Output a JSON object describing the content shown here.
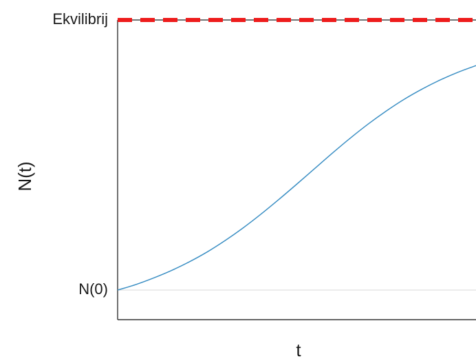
{
  "chart_data": {
    "type": "line",
    "title": "",
    "xlabel": "t",
    "ylabel": "N(t)",
    "y_ticks": [
      {
        "label": "N(0)",
        "value": 0.1
      },
      {
        "label": "Ekvilibrij",
        "value": 1.0
      }
    ],
    "xlim": [
      0,
      10
    ],
    "ylim": [
      0,
      1.0
    ],
    "grid": false,
    "legend": "none",
    "series": [
      {
        "color": "#3b8fc4",
        "x": [
          0,
          0.5,
          1,
          1.5,
          2,
          2.5,
          3,
          3.5,
          4,
          4.5,
          5,
          5.5,
          6,
          6.5,
          7,
          7.5,
          8,
          8.5,
          9,
          9.5,
          10
        ],
        "y": [
          0.1,
          0.118,
          0.14,
          0.165,
          0.194,
          0.227,
          0.265,
          0.307,
          0.353,
          0.402,
          0.453,
          0.505,
          0.557,
          0.607,
          0.654,
          0.697,
          0.736,
          0.77,
          0.8,
          0.826,
          0.848
        ]
      }
    ],
    "reference_lines": [
      {
        "name": "equilibrium",
        "value": 1.0,
        "color": "#ee1c1c",
        "style": "dashed"
      },
      {
        "name": "initial",
        "value": 0.1,
        "color": "#d8d8d8",
        "style": "solid"
      }
    ]
  }
}
